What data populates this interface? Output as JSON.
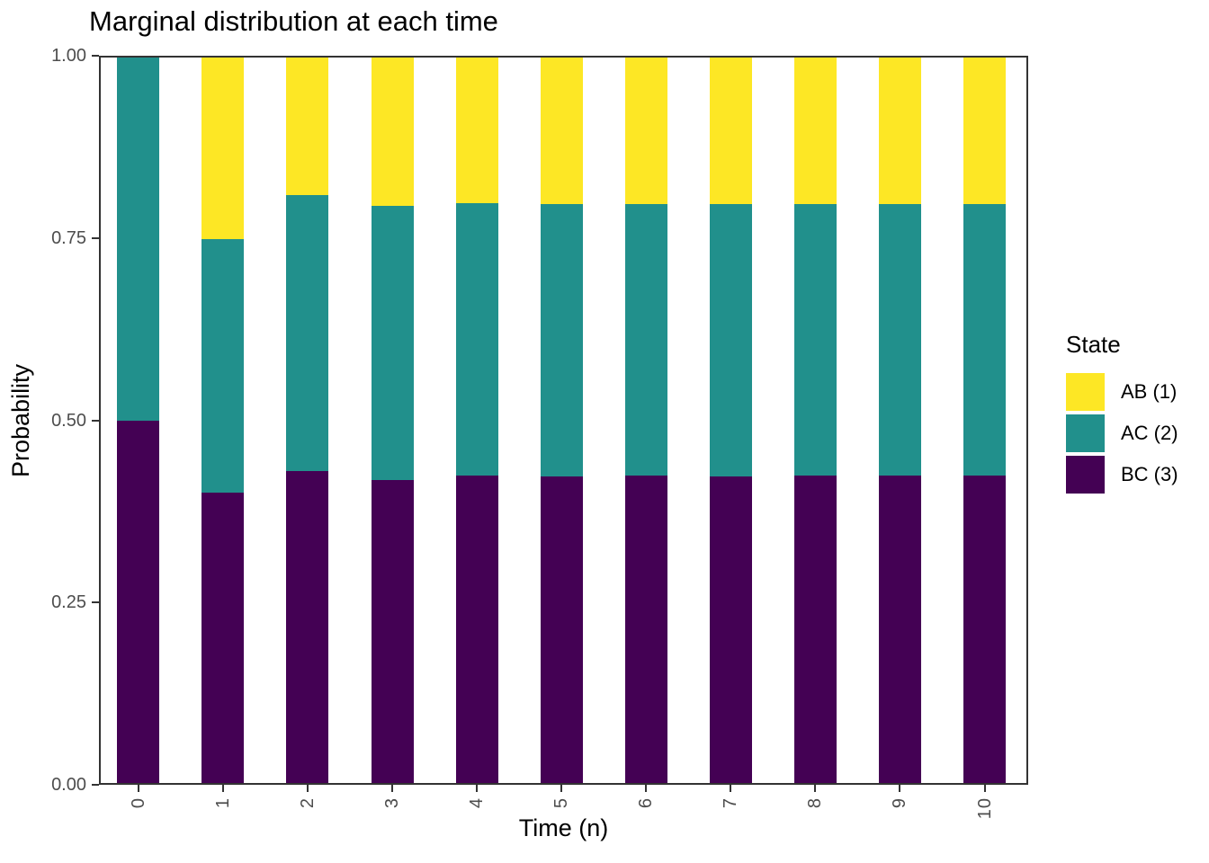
{
  "chart_data": {
    "type": "bar",
    "stacked": true,
    "title": "Marginal distribution at each time",
    "xlabel": "Time (n)",
    "ylabel": "Probability",
    "x": [
      "0",
      "1",
      "2",
      "3",
      "4",
      "5",
      "6",
      "7",
      "8",
      "9",
      "10"
    ],
    "ylim": [
      0,
      1
    ],
    "yticks": [
      "0.00",
      "0.25",
      "0.50",
      "0.75",
      "1.00"
    ],
    "grid": false,
    "series": [
      {
        "name": "BC (3)",
        "color": "#440154",
        "values": [
          0.5,
          0.4,
          0.43,
          0.418,
          0.424,
          0.4225,
          0.4235,
          0.4228,
          0.4233,
          0.4232,
          0.4232
        ]
      },
      {
        "name": "AC (2)",
        "color": "#21908C",
        "values": [
          0.5,
          0.35,
          0.38,
          0.3775,
          0.375,
          0.375,
          0.375,
          0.3752,
          0.375,
          0.3752,
          0.3752
        ]
      },
      {
        "name": "AB (1)",
        "color": "#FDE725",
        "values": [
          0.0,
          0.25,
          0.19,
          0.2045,
          0.201,
          0.2025,
          0.2015,
          0.202,
          0.2017,
          0.2016,
          0.2016
        ]
      }
    ],
    "legend": {
      "title": "State",
      "position": "right",
      "entries": [
        {
          "label": "AB (1)",
          "color": "#FDE725"
        },
        {
          "label": "AC (2)",
          "color": "#21908C"
        },
        {
          "label": "BC (3)",
          "color": "#440154"
        }
      ]
    },
    "style": {
      "panel_border_color": "#333333",
      "tick_color": "#333333",
      "tick_label_color": "#4d4d4d",
      "background": "#ffffff"
    }
  }
}
